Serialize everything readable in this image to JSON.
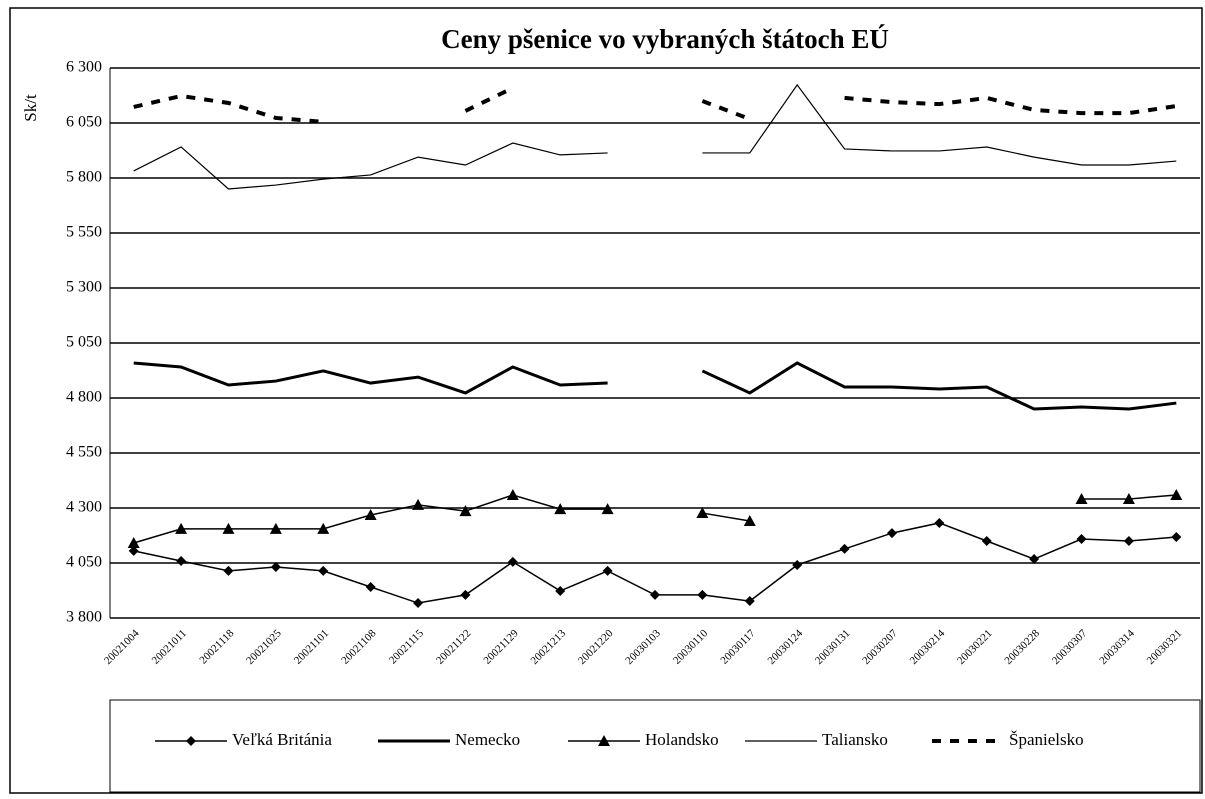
{
  "chart_data": {
    "type": "line",
    "title": "Ceny pšenice vo vybraných štátoch EÚ",
    "ylabel": "Sk/t",
    "categories": [
      "20021004",
      "20021011",
      "20021118",
      "20021025",
      "20021101",
      "20021108",
      "20021115",
      "20021122",
      "20021129",
      "20021213",
      "20021220",
      "20030103",
      "20030110",
      "20030117",
      "20030124",
      "20030131",
      "20030207",
      "20030214",
      "20030221",
      "20030228",
      "20030307",
      "20030314",
      "20030321"
    ],
    "ylim": [
      3800,
      6300
    ],
    "yticks": [
      {
        "value": 3800,
        "label": "3 800"
      },
      {
        "value": 4050,
        "label": "4 050"
      },
      {
        "value": 4300,
        "label": "4 300"
      },
      {
        "value": 4550,
        "label": "4 550"
      },
      {
        "value": 4800,
        "label": "4 800"
      },
      {
        "value": 5050,
        "label": "5 050"
      },
      {
        "value": 5300,
        "label": "5 300"
      },
      {
        "value": 5550,
        "label": "5 550"
      },
      {
        "value": 5800,
        "label": "5 800"
      },
      {
        "value": 6050,
        "label": "6 050"
      },
      {
        "value": 6300,
        "label": "6 300"
      }
    ],
    "grid": true,
    "legend": "bottom",
    "series": [
      {
        "name": "Veľká Británia",
        "color": "#000000",
        "marker": "diamond",
        "line_width": 1.5,
        "dash": false,
        "values": [
          4105,
          4059,
          4014,
          4032,
          4014,
          3941,
          3868,
          3905,
          4055,
          3923,
          4014,
          3905,
          3905,
          3877,
          4041,
          4114,
          4186,
          4232,
          4150,
          4068,
          4159,
          4150,
          4168
        ]
      },
      {
        "name": "Nemecko",
        "color": "#000000",
        "line_width": 3,
        "dash": false,
        "values": [
          4959,
          4941,
          4859,
          4877,
          4923,
          4868,
          4895,
          4823,
          4941,
          4859,
          4868,
          null,
          4923,
          4823,
          4959,
          4850,
          4850,
          4841,
          4850,
          4750,
          4759,
          4750,
          4777
        ]
      },
      {
        "name": "Holandsko",
        "color": "#000000",
        "marker": "triangle",
        "line_width": 1.5,
        "dash": false,
        "values": [
          4141,
          4205,
          4205,
          4205,
          4205,
          4268,
          4314,
          4286,
          4359,
          4295,
          4295,
          null,
          4277,
          4241,
          null,
          null,
          null,
          null,
          null,
          null,
          4341,
          4341,
          4359
        ]
      },
      {
        "name": "Taliansko",
        "color": "#000000",
        "line_width": 1.2,
        "dash": false,
        "values": [
          5832,
          5941,
          5750,
          5768,
          5795,
          5814,
          5895,
          5859,
          5959,
          5905,
          5914,
          null,
          5914,
          5914,
          6223,
          5932,
          5923,
          5923,
          5941,
          5895,
          5859,
          5859,
          5877
        ]
      },
      {
        "name": "Španielsko",
        "color": "#000000",
        "line_width": 4,
        "dash": true,
        "values": [
          6123,
          6173,
          6141,
          6073,
          6055,
          null,
          null,
          6105,
          6209,
          null,
          null,
          null,
          6150,
          6068,
          null,
          6164,
          6145,
          6136,
          6164,
          6109,
          6095,
          6095,
          6127
        ]
      }
    ]
  }
}
